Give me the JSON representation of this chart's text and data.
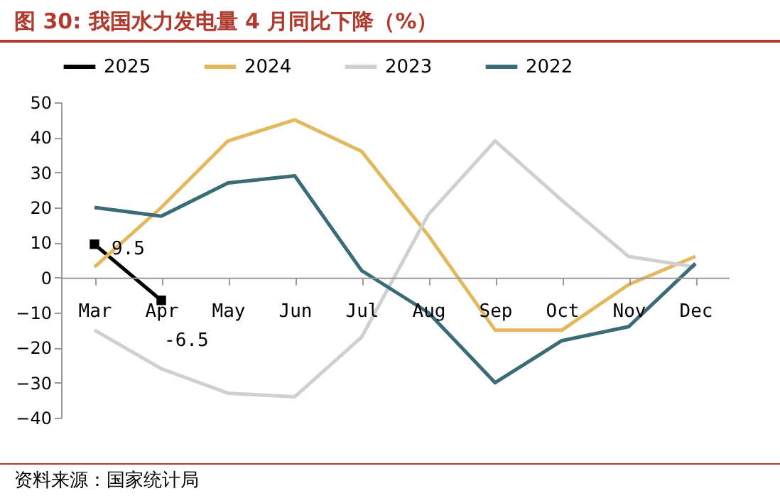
{
  "chart_data": {
    "type": "line",
    "title": "图 30: 我国水力发电量 4 月同比下降（%）",
    "categories": [
      "Mar",
      "Apr",
      "May",
      "Jun",
      "Jul",
      "Aug",
      "Sep",
      "Oct",
      "Nov",
      "Dec"
    ],
    "series": [
      {
        "name": "2025",
        "color": "#000000",
        "marker": "square",
        "values": [
          9.5,
          -6.5,
          null,
          null,
          null,
          null,
          null,
          null,
          null,
          null
        ],
        "value_labels": [
          "9.5",
          "-6.5",
          null,
          null,
          null,
          null,
          null,
          null,
          null,
          null
        ]
      },
      {
        "name": "2024",
        "color": "#e3b95f",
        "values": [
          3,
          20,
          39,
          45,
          36,
          12,
          -15,
          -15,
          -2,
          6
        ]
      },
      {
        "name": "2023",
        "color": "#d0d0d0",
        "values": [
          -15,
          -26,
          -33,
          -34,
          -17,
          18,
          39,
          22,
          6,
          3
        ]
      },
      {
        "name": "2022",
        "color": "#3a6b77",
        "values": [
          20,
          17.5,
          27,
          29,
          2,
          -10,
          -30,
          -18,
          -14,
          4
        ]
      }
    ],
    "ylim": [
      -40,
      50
    ],
    "yticks": [
      -40,
      -30,
      -20,
      -10,
      0,
      10,
      20,
      30,
      40,
      50
    ],
    "grid": false,
    "legend": "top",
    "line_style": "solid",
    "annotations": [
      "资料来源：国家统计局"
    ]
  }
}
